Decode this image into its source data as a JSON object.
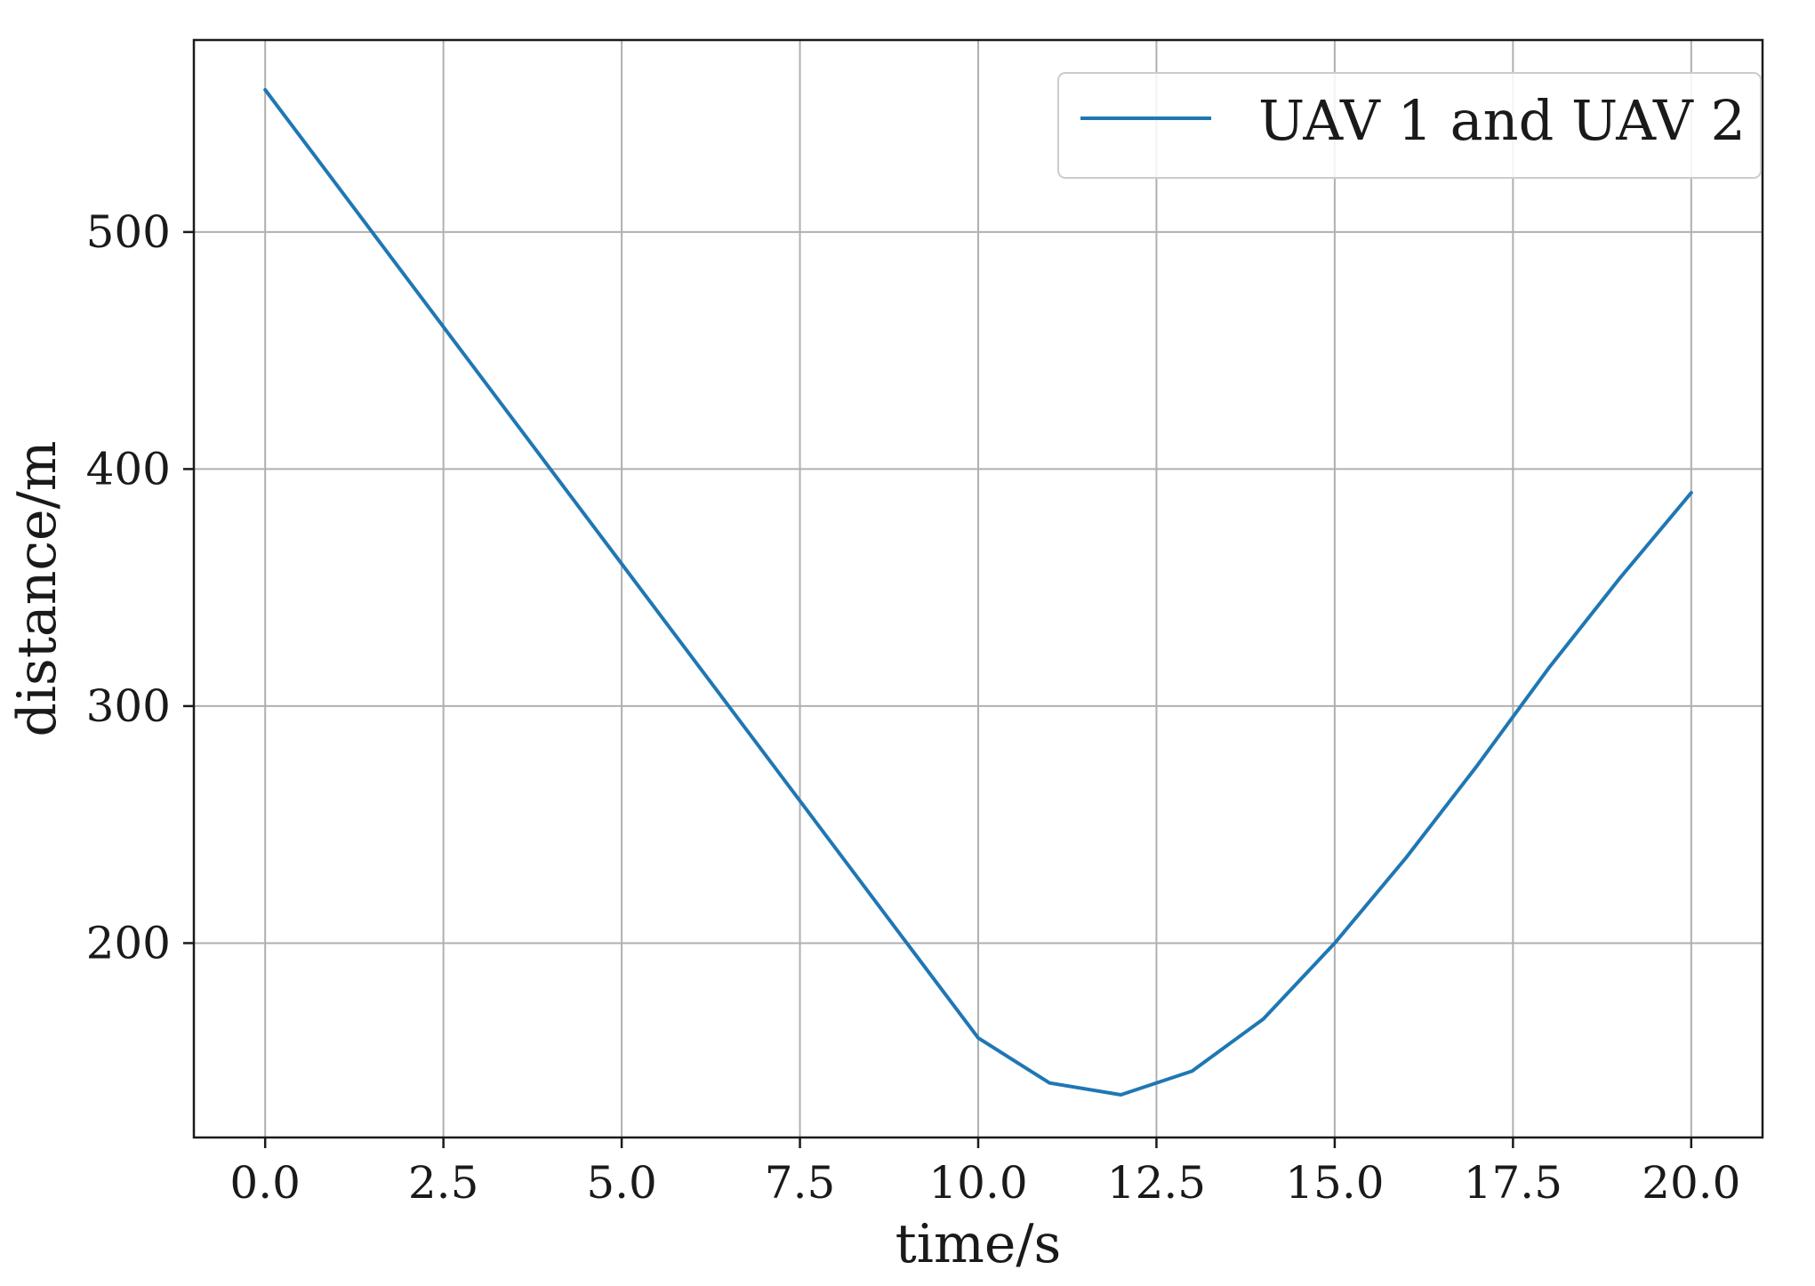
{
  "chart_data": {
    "type": "line",
    "title": "",
    "xlabel": "time/s",
    "ylabel": "distance/m",
    "xlim": [
      -1.0,
      21.0
    ],
    "ylim": [
      118,
      581
    ],
    "xticks": [
      0.0,
      2.5,
      5.0,
      7.5,
      10.0,
      12.5,
      15.0,
      17.5,
      20.0
    ],
    "xtick_labels": [
      "0.0",
      "2.5",
      "5.0",
      "7.5",
      "10.0",
      "12.5",
      "15.0",
      "17.5",
      "20.0"
    ],
    "yticks": [
      200,
      300,
      400,
      500
    ],
    "ytick_labels": [
      "200",
      "300",
      "400",
      "500"
    ],
    "grid": true,
    "legend": {
      "position": "top-right"
    },
    "series": [
      {
        "name": "UAV 1 and UAV 2",
        "color": "#1f77b4",
        "x": [
          0,
          1,
          2,
          3,
          4,
          5,
          6,
          7,
          8,
          9,
          10,
          11,
          12,
          13,
          14,
          15,
          16,
          17,
          18,
          19,
          20
        ],
        "y": [
          560,
          520,
          480,
          440,
          400,
          360,
          320,
          280,
          240,
          200,
          160,
          141,
          136,
          146,
          168,
          200,
          236,
          275,
          316,
          354,
          390
        ]
      }
    ]
  }
}
